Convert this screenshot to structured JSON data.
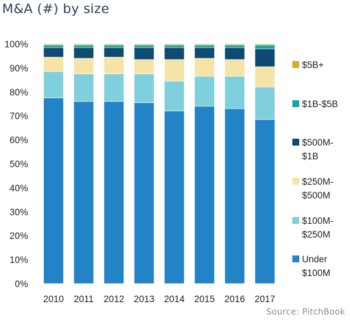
{
  "chart_data": {
    "type": "bar",
    "stacked": true,
    "percent": true,
    "title": "M&A (#) by size",
    "source": "Source: PitchBook",
    "categories": [
      "2010",
      "2011",
      "2012",
      "2013",
      "2014",
      "2015",
      "2016",
      "2017"
    ],
    "ylim": [
      0,
      100
    ],
    "yticks": [
      "0%",
      "10%",
      "20%",
      "30%",
      "40%",
      "50%",
      "60%",
      "70%",
      "80%",
      "90%",
      "100%"
    ],
    "grid": false,
    "legend_position": "right",
    "series": [
      {
        "name": "Under $100M",
        "legend_lines": [
          "Under",
          "$100M"
        ],
        "color": "#2283c6",
        "values": [
          77.5,
          76,
          76,
          75.5,
          72,
          74,
          73,
          68.5
        ]
      },
      {
        "name": "$100M-$250M",
        "legend_lines": [
          "$100M-",
          "$250M"
        ],
        "color": "#7fcfdc",
        "values": [
          11,
          11.5,
          11.5,
          12,
          12.5,
          12.5,
          13.5,
          13.5
        ]
      },
      {
        "name": "$250M-$500M",
        "legend_lines": [
          "$250M-",
          "$500M"
        ],
        "color": "#f6e3a6",
        "values": [
          6,
          6.5,
          7,
          6,
          9,
          7.5,
          7,
          8.5
        ]
      },
      {
        "name": "$500M-$1B",
        "legend_lines": [
          "$500M-",
          "$1B"
        ],
        "color": "#0f4a72",
        "values": [
          4,
          4.5,
          4,
          5,
          5,
          4.5,
          5,
          7.5
        ]
      },
      {
        "name": "$1B-$5B",
        "legend_lines": [
          "$1B-$5B"
        ],
        "color": "#0fa9a9",
        "values": [
          1,
          1,
          1,
          1,
          1,
          1,
          1,
          1.5
        ]
      },
      {
        "name": "$5B+",
        "legend_lines": [
          "$5B+"
        ],
        "color": "#d4ad2a",
        "values": [
          0.5,
          0.5,
          0.5,
          0.5,
          0.5,
          0.5,
          0.5,
          0.5
        ]
      }
    ]
  }
}
